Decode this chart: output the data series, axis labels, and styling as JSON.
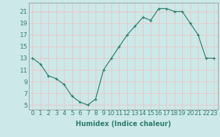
{
  "x": [
    0,
    1,
    2,
    3,
    4,
    5,
    6,
    7,
    8,
    9,
    10,
    11,
    12,
    13,
    14,
    15,
    16,
    17,
    18,
    19,
    20,
    21,
    22,
    23
  ],
  "y": [
    13,
    12,
    10,
    9.5,
    8.5,
    6.5,
    5.5,
    5,
    6,
    11,
    13,
    15,
    17,
    18.5,
    20,
    19.5,
    21.5,
    21.5,
    21,
    21,
    19,
    17,
    13,
    13
  ],
  "line_color": "#2e7d6e",
  "marker": "+",
  "marker_color": "#2e7d6e",
  "bg_color": "#cce8e8",
  "grid_color": "#f0c0c0",
  "xlabel": "Humidex (Indice chaleur)",
  "xlabel_fontsize": 7,
  "xticks": [
    0,
    1,
    2,
    3,
    4,
    5,
    6,
    7,
    8,
    9,
    10,
    11,
    12,
    13,
    14,
    15,
    16,
    17,
    18,
    19,
    20,
    21,
    22,
    23
  ],
  "yticks": [
    5,
    7,
    9,
    11,
    13,
    15,
    17,
    19,
    21
  ],
  "ylim": [
    4.2,
    22.5
  ],
  "xlim": [
    -0.5,
    23.5
  ],
  "tick_fontsize": 6.5,
  "title": ""
}
